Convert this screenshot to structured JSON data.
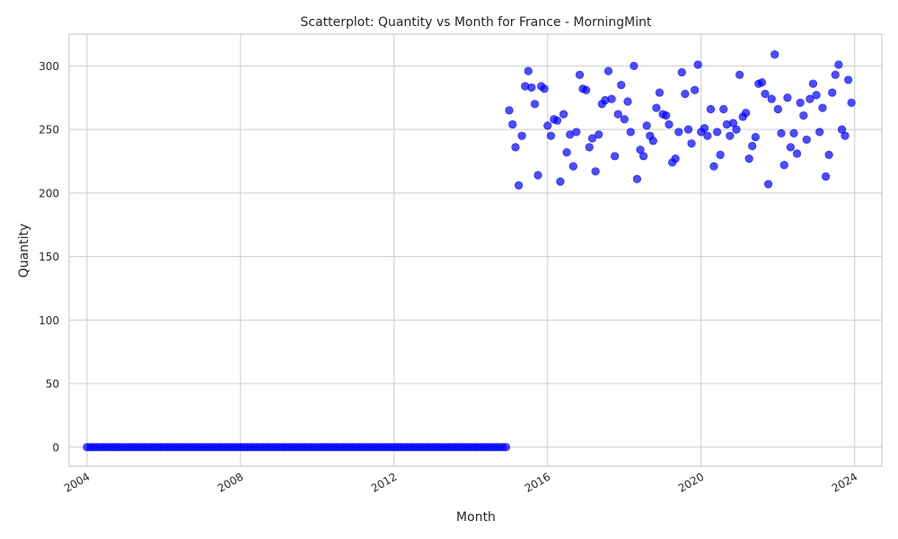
{
  "chart_data": {
    "type": "scatter",
    "title": "Scatterplot: Quantity vs Month for France - MorningMint",
    "xlabel": "Month",
    "ylabel": "Quantity",
    "x_ticks": [
      "2004",
      "2008",
      "2012",
      "2016",
      "2020",
      "2024"
    ],
    "y_ticks": [
      0,
      50,
      100,
      150,
      200,
      250,
      300
    ],
    "xlim": [
      "2003-07-15",
      "2024-09-15"
    ],
    "ylim": [
      -15,
      325
    ],
    "grid": true,
    "point_color": "#0000ff",
    "series": [
      {
        "x": [
          "2004-01",
          "2004-02",
          "2004-03",
          "2004-04",
          "2004-05",
          "2004-06",
          "2004-07",
          "2004-08",
          "2004-09",
          "2004-10",
          "2004-11",
          "2004-12",
          "2005-01",
          "2005-02",
          "2005-03",
          "2005-04",
          "2005-05",
          "2005-06",
          "2005-07",
          "2005-08",
          "2005-09",
          "2005-10",
          "2005-11",
          "2005-12",
          "2006-01",
          "2006-02",
          "2006-03",
          "2006-04",
          "2006-05",
          "2006-06",
          "2006-07",
          "2006-08",
          "2006-09",
          "2006-10",
          "2006-11",
          "2006-12",
          "2007-01",
          "2007-02",
          "2007-03",
          "2007-04",
          "2007-05",
          "2007-06",
          "2007-07",
          "2007-08",
          "2007-09",
          "2007-10",
          "2007-11",
          "2007-12",
          "2008-01",
          "2008-02",
          "2008-03",
          "2008-04",
          "2008-05",
          "2008-06",
          "2008-07",
          "2008-08",
          "2008-09",
          "2008-10",
          "2008-11",
          "2008-12",
          "2009-01",
          "2009-02",
          "2009-03",
          "2009-04",
          "2009-05",
          "2009-06",
          "2009-07",
          "2009-08",
          "2009-09",
          "2009-10",
          "2009-11",
          "2009-12",
          "2010-01",
          "2010-02",
          "2010-03",
          "2010-04",
          "2010-05",
          "2010-06",
          "2010-07",
          "2010-08",
          "2010-09",
          "2010-10",
          "2010-11",
          "2010-12",
          "2011-01",
          "2011-02",
          "2011-03",
          "2011-04",
          "2011-05",
          "2011-06",
          "2011-07",
          "2011-08",
          "2011-09",
          "2011-10",
          "2011-11",
          "2011-12",
          "2012-01",
          "2012-02",
          "2012-03",
          "2012-04",
          "2012-05",
          "2012-06",
          "2012-07",
          "2012-08",
          "2012-09",
          "2012-10",
          "2012-11",
          "2012-12",
          "2013-01",
          "2013-02",
          "2013-03",
          "2013-04",
          "2013-05",
          "2013-06",
          "2013-07",
          "2013-08",
          "2013-09",
          "2013-10",
          "2013-11",
          "2013-12",
          "2014-01",
          "2014-02",
          "2014-03",
          "2014-04",
          "2014-05",
          "2014-06",
          "2014-07",
          "2014-08",
          "2014-09",
          "2014-10",
          "2014-11",
          "2014-12",
          "2015-01",
          "2015-02",
          "2015-03",
          "2015-04",
          "2015-05",
          "2015-06",
          "2015-07",
          "2015-08",
          "2015-09",
          "2015-10",
          "2015-11",
          "2015-12",
          "2016-01",
          "2016-02",
          "2016-03",
          "2016-04",
          "2016-05",
          "2016-06",
          "2016-07",
          "2016-08",
          "2016-09",
          "2016-10",
          "2016-11",
          "2016-12",
          "2017-01",
          "2017-02",
          "2017-03",
          "2017-04",
          "2017-05",
          "2017-06",
          "2017-07",
          "2017-08",
          "2017-09",
          "2017-10",
          "2017-11",
          "2017-12",
          "2018-01",
          "2018-02",
          "2018-03",
          "2018-04",
          "2018-05",
          "2018-06",
          "2018-07",
          "2018-08",
          "2018-09",
          "2018-10",
          "2018-11",
          "2018-12",
          "2019-01",
          "2019-02",
          "2019-03",
          "2019-04",
          "2019-05",
          "2019-06",
          "2019-07",
          "2019-08",
          "2019-09",
          "2019-10",
          "2019-11",
          "2019-12",
          "2020-01",
          "2020-02",
          "2020-03",
          "2020-04",
          "2020-05",
          "2020-06",
          "2020-07",
          "2020-08",
          "2020-09",
          "2020-10",
          "2020-11",
          "2020-12",
          "2021-01",
          "2021-02",
          "2021-03",
          "2021-04",
          "2021-05",
          "2021-06",
          "2021-07",
          "2021-08",
          "2021-09",
          "2021-10",
          "2021-11",
          "2021-12",
          "2022-01",
          "2022-02",
          "2022-03",
          "2022-04",
          "2022-05",
          "2022-06",
          "2022-07",
          "2022-08",
          "2022-09",
          "2022-10",
          "2022-11",
          "2022-12",
          "2023-01",
          "2023-02",
          "2023-03",
          "2023-04",
          "2023-05",
          "2023-06",
          "2023-07",
          "2023-08",
          "2023-09",
          "2023-10",
          "2023-11",
          "2023-12"
        ],
        "y": [
          0,
          0,
          0,
          0,
          0,
          0,
          0,
          0,
          0,
          0,
          0,
          0,
          0,
          0,
          0,
          0,
          0,
          0,
          0,
          0,
          0,
          0,
          0,
          0,
          0,
          0,
          0,
          0,
          0,
          0,
          0,
          0,
          0,
          0,
          0,
          0,
          0,
          0,
          0,
          0,
          0,
          0,
          0,
          0,
          0,
          0,
          0,
          0,
          0,
          0,
          0,
          0,
          0,
          0,
          0,
          0,
          0,
          0,
          0,
          0,
          0,
          0,
          0,
          0,
          0,
          0,
          0,
          0,
          0,
          0,
          0,
          0,
          0,
          0,
          0,
          0,
          0,
          0,
          0,
          0,
          0,
          0,
          0,
          0,
          0,
          0,
          0,
          0,
          0,
          0,
          0,
          0,
          0,
          0,
          0,
          0,
          0,
          0,
          0,
          0,
          0,
          0,
          0,
          0,
          0,
          0,
          0,
          0,
          0,
          0,
          0,
          0,
          0,
          0,
          0,
          0,
          0,
          0,
          0,
          0,
          0,
          0,
          0,
          0,
          0,
          0,
          0,
          0,
          0,
          0,
          0,
          0,
          265,
          254,
          236,
          206,
          245,
          284,
          296,
          283,
          270,
          214,
          284,
          282,
          253,
          245,
          258,
          257,
          209,
          262,
          232,
          246,
          221,
          248,
          293,
          282,
          281,
          236,
          243,
          217,
          246,
          270,
          273,
          296,
          274,
          229,
          262,
          285,
          258,
          272,
          248,
          300,
          211,
          234,
          229,
          253,
          245,
          241,
          267,
          279,
          262,
          261,
          254,
          224,
          227,
          248,
          295,
          278,
          250,
          239,
          281,
          301,
          248,
          251,
          245,
          266,
          221,
          248,
          230,
          266,
          254,
          245,
          255,
          250,
          293,
          260,
          263,
          227,
          237,
          244,
          286,
          287,
          278,
          207,
          274,
          309,
          266,
          247,
          222,
          275,
          236,
          247,
          231,
          271,
          261,
          242,
          274,
          286,
          277,
          248,
          267,
          213,
          230,
          279,
          293,
          301,
          250,
          245,
          289,
          271
        ]
      }
    ]
  }
}
